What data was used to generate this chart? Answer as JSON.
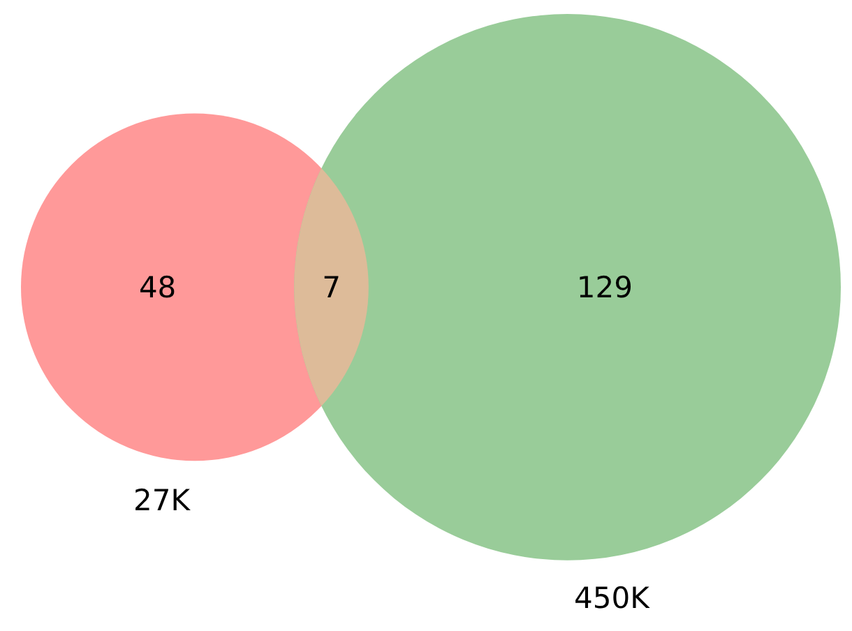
{
  "chart_data": {
    "type": "other",
    "categories": [
      null,
      null,
      null
    ],
    "values": [
      48,
      7,
      129
    ],
    "colors": [
      "#ff9999",
      "#99cc99",
      "#ddbb99"
    ],
    "data_labels": true,
    "annotations": [
      "27K",
      "450K"
    ]
  }
}
